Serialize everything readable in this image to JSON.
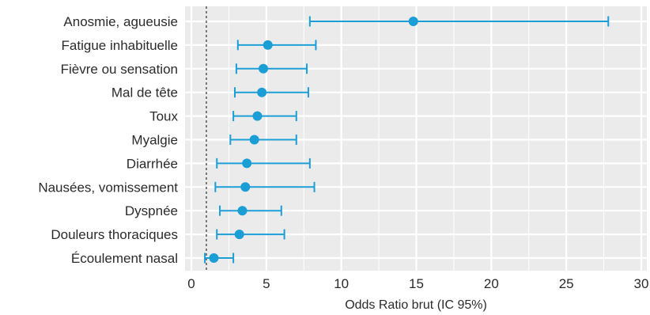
{
  "chart_data": {
    "type": "scatter",
    "subtype": "forest-plot",
    "title": "",
    "xlabel": "Odds Ratio brut (IC 95%)",
    "ylabel": "",
    "xlim": [
      0,
      30
    ],
    "xticks": [
      0,
      5,
      10,
      15,
      20,
      25,
      30
    ],
    "reference_line": 1,
    "grid": true,
    "categories": [
      "Anosmie, agueusie",
      "Fatigue inhabituelle",
      "Fièvre ou sensation",
      "Mal de tête",
      "Toux",
      "Myalgie",
      "Diarrhée",
      "Nausées, vomissement",
      "Dyspnée",
      "Douleurs thoraciques",
      "Écoulement nasal"
    ],
    "estimate": [
      14.8,
      5.1,
      4.8,
      4.7,
      4.4,
      4.2,
      3.7,
      3.6,
      3.4,
      3.2,
      1.5
    ],
    "ci_low": [
      7.9,
      3.1,
      3.0,
      2.9,
      2.8,
      2.6,
      1.7,
      1.6,
      1.9,
      1.7,
      0.9
    ],
    "ci_high": [
      27.8,
      8.3,
      7.7,
      7.8,
      7.0,
      7.0,
      7.9,
      8.2,
      6.0,
      6.2,
      2.8
    ],
    "colors": {
      "marker": "#1b9ed6",
      "panel": "#ebebeb",
      "grid": "#ffffff",
      "reference": "#3a3a3a"
    }
  }
}
